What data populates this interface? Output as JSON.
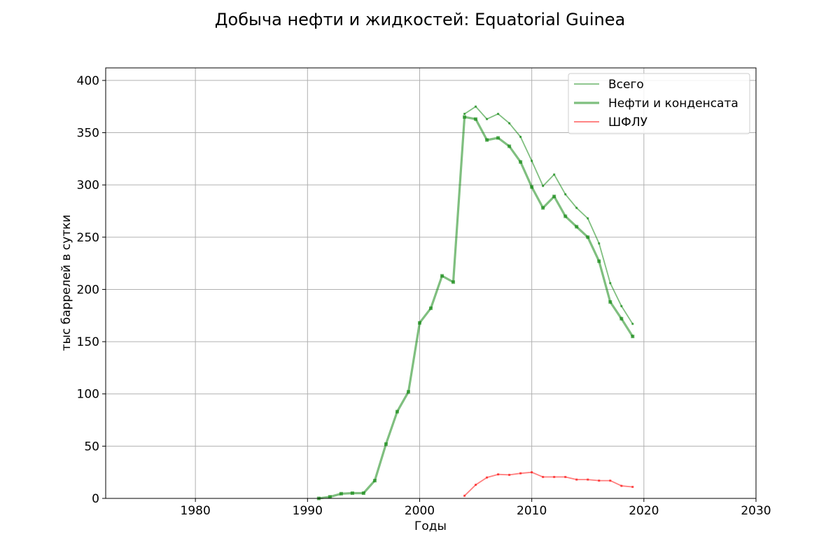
{
  "chart_data": {
    "type": "line",
    "title": "Добыча нефти и жидкостей: Equatorial Guinea",
    "xlabel": "Годы",
    "ylabel": "тыс баррелей в сутки",
    "xlim": [
      1972,
      2030
    ],
    "ylim": [
      0,
      412
    ],
    "xticks": [
      1980,
      1990,
      2000,
      2010,
      2020,
      2030
    ],
    "yticks": [
      0,
      50,
      100,
      150,
      200,
      250,
      300,
      350,
      400
    ],
    "grid": true,
    "legend_position": "top-right",
    "series": [
      {
        "name": "Всего",
        "color": "#008000",
        "x": [
          2004,
          2005,
          2006,
          2007,
          2008,
          2009,
          2010,
          2011,
          2012,
          2013,
          2014,
          2015,
          2016,
          2017,
          2018,
          2019
        ],
        "values": [
          368,
          375,
          363,
          368,
          359,
          346,
          323,
          299,
          310,
          291,
          278,
          268,
          244,
          206,
          184,
          167
        ]
      },
      {
        "name": "Нефти и конденсата",
        "color": "#008000",
        "x": [
          1991,
          1992,
          1993,
          1994,
          1995,
          1996,
          1997,
          1998,
          1999,
          2000,
          2001,
          2002,
          2003,
          2004,
          2005,
          2006,
          2007,
          2008,
          2009,
          2010,
          2011,
          2012,
          2013,
          2014,
          2015,
          2016,
          2017,
          2018,
          2019
        ],
        "values": [
          0,
          1.5,
          4.5,
          5,
          5,
          17,
          52,
          83,
          102,
          168,
          182,
          213,
          207,
          365,
          363,
          343,
          345,
          337,
          322,
          298,
          278,
          289,
          270,
          260,
          250,
          227,
          188,
          172,
          155
        ]
      },
      {
        "name": "ШФЛУ",
        "color": "#ff0000",
        "x": [
          2004,
          2005,
          2006,
          2007,
          2008,
          2009,
          2010,
          2011,
          2012,
          2013,
          2014,
          2015,
          2016,
          2017,
          2018,
          2019
        ],
        "values": [
          2.5,
          13,
          20,
          23,
          22.5,
          24,
          25,
          20.5,
          20.5,
          20.5,
          18,
          18,
          17,
          17,
          12,
          11
        ]
      }
    ]
  }
}
